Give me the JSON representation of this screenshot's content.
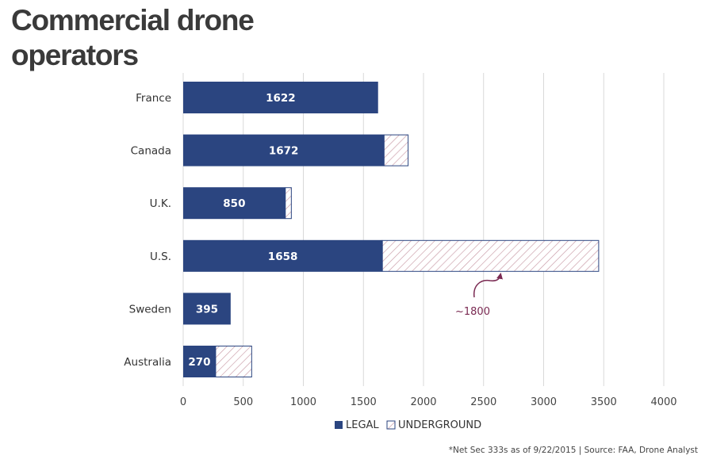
{
  "page": {
    "title": "Commercial drone operators",
    "footnote": "*Net Sec 333s as of 9/22/2015 | Source: FAA, Drone Analyst"
  },
  "colors": {
    "legal": "#2b4580",
    "underground_stroke": "#c99aa6",
    "annotation": "#7a2a52",
    "grid": "#d9d9d9",
    "title": "#3a3a3a"
  },
  "chart_data": {
    "type": "bar",
    "orientation": "horizontal",
    "stacked": true,
    "categories": [
      "France",
      "Canada",
      "U.K.",
      "U.S.",
      "Sweden",
      "Australia"
    ],
    "series": [
      {
        "name": "LEGAL",
        "values": [
          1622,
          1672,
          850,
          1658,
          395,
          270
        ]
      },
      {
        "name": "UNDERGROUND",
        "values": [
          0,
          200,
          50,
          1800,
          0,
          300
        ]
      }
    ],
    "data_labels": [
      "1622",
      "1672",
      "850",
      "1658",
      "395",
      "270"
    ],
    "xlim": [
      0,
      4000
    ],
    "xticks": [
      0,
      500,
      1000,
      1500,
      2000,
      2500,
      3000,
      3500,
      4000
    ],
    "xtick_labels": [
      "0",
      "500",
      "1000",
      "1500",
      "2000",
      "2500",
      "3000",
      "3500",
      "4000"
    ],
    "grid": true,
    "legend": [
      "LEGAL",
      "UNDERGROUND"
    ],
    "legend_position": "bottom",
    "annotation": {
      "text": "~1800",
      "category": "U.S.",
      "series": "UNDERGROUND"
    },
    "title": "Commercial drone operators",
    "xlabel": "",
    "ylabel": ""
  }
}
